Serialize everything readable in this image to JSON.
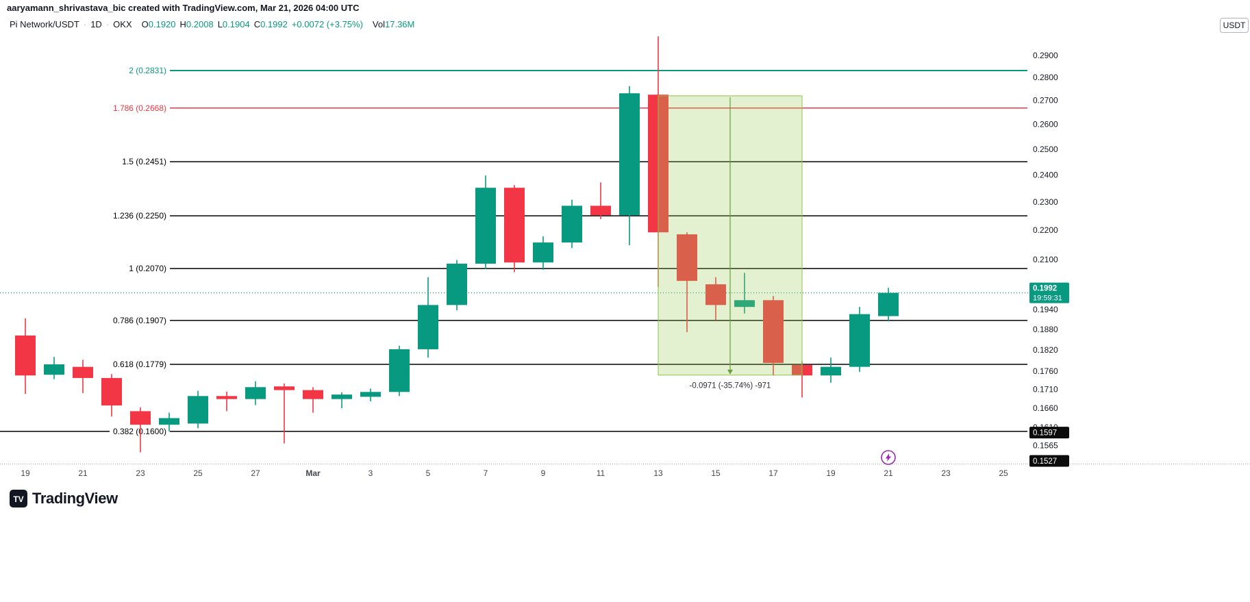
{
  "attribution": "aaryamann_shrivastava_bic created with TradingView.com, Mar 21, 2026 04:00 UTC",
  "legend": {
    "symbol": "Pi Network/USDT",
    "separator": "·",
    "interval": "1D",
    "exchange": "OKX",
    "o_label": "O",
    "o_value": "0.1920",
    "h_label": "H",
    "h_value": "0.2008",
    "l_label": "L",
    "l_value": "0.1904",
    "c_label": "C",
    "c_value": "0.1992",
    "change": "+0.0072 (+3.75%)",
    "vol_label": "Vol",
    "vol_value": "17.36M"
  },
  "axis_currency": "USDT",
  "footer": {
    "brand": "TradingView",
    "logo_mark": "TV"
  },
  "chart_data": {
    "type": "candlestick",
    "symbol": "Pi Network/USDT",
    "interval": "1D",
    "exchange": "OKX",
    "y_scale": "log",
    "ylim": [
      0.15,
      0.3
    ],
    "colors": {
      "up": "#089981",
      "down": "#F23645",
      "fib_black": "#000000",
      "measure_fill": "rgba(155,206,88,0.28)",
      "measure_stroke": "#8BC34A",
      "measure_arrow": "#689F38",
      "badge_bg": "#0C0C0C",
      "axis_text": "#131722",
      "date_text": "#434651",
      "marker_purple": "#9C27B0"
    },
    "candles": [
      {
        "date": "Feb 19",
        "o": 0.1862,
        "h": 0.1913,
        "l": 0.1698,
        "c": 0.1748
      },
      {
        "date": "Feb 20",
        "o": 0.175,
        "h": 0.18,
        "l": 0.1738,
        "c": 0.1779
      },
      {
        "date": "Feb 21",
        "o": 0.1772,
        "h": 0.1792,
        "l": 0.17,
        "c": 0.1741
      },
      {
        "date": "Feb 22",
        "o": 0.1741,
        "h": 0.1752,
        "l": 0.1638,
        "c": 0.1667
      },
      {
        "date": "Feb 23",
        "o": 0.1652,
        "h": 0.1662,
        "l": 0.1548,
        "c": 0.1617
      },
      {
        "date": "Feb 24",
        "o": 0.1617,
        "h": 0.1648,
        "l": 0.16,
        "c": 0.1634
      },
      {
        "date": "Feb 25",
        "o": 0.162,
        "h": 0.1706,
        "l": 0.1608,
        "c": 0.1692
      },
      {
        "date": "Feb 26",
        "o": 0.1692,
        "h": 0.1704,
        "l": 0.1652,
        "c": 0.1684
      },
      {
        "date": "Feb 27",
        "o": 0.1684,
        "h": 0.1732,
        "l": 0.1668,
        "c": 0.1716
      },
      {
        "date": "Feb 28",
        "o": 0.1718,
        "h": 0.1726,
        "l": 0.157,
        "c": 0.1708
      },
      {
        "date": "Mar 1",
        "o": 0.1708,
        "h": 0.1716,
        "l": 0.1648,
        "c": 0.1684
      },
      {
        "date": "Mar 2",
        "o": 0.1684,
        "h": 0.1702,
        "l": 0.166,
        "c": 0.1696
      },
      {
        "date": "Mar 3",
        "o": 0.169,
        "h": 0.1712,
        "l": 0.1678,
        "c": 0.1703
      },
      {
        "date": "Mar 4",
        "o": 0.1703,
        "h": 0.1832,
        "l": 0.1692,
        "c": 0.1822
      },
      {
        "date": "Mar 5",
        "o": 0.1822,
        "h": 0.2042,
        "l": 0.1798,
        "c": 0.1954
      },
      {
        "date": "Mar 6",
        "o": 0.1954,
        "h": 0.2098,
        "l": 0.1938,
        "c": 0.2086
      },
      {
        "date": "Mar 7",
        "o": 0.2086,
        "h": 0.2398,
        "l": 0.2068,
        "c": 0.2352
      },
      {
        "date": "Mar 8",
        "o": 0.2352,
        "h": 0.2362,
        "l": 0.2058,
        "c": 0.209
      },
      {
        "date": "Mar 9",
        "o": 0.209,
        "h": 0.2178,
        "l": 0.2066,
        "c": 0.2157
      },
      {
        "date": "Mar 10",
        "o": 0.2157,
        "h": 0.2308,
        "l": 0.2138,
        "c": 0.2286
      },
      {
        "date": "Mar 11",
        "o": 0.2286,
        "h": 0.2372,
        "l": 0.2238,
        "c": 0.2252
      },
      {
        "date": "Mar 12",
        "o": 0.2252,
        "h": 0.2762,
        "l": 0.2148,
        "c": 0.2731
      },
      {
        "date": "Mar 13",
        "o": 0.2725,
        "h": 0.2988,
        "l": 0.201,
        "c": 0.2192
      },
      {
        "date": "Mar 14",
        "o": 0.2185,
        "h": 0.2192,
        "l": 0.1872,
        "c": 0.203
      },
      {
        "date": "Mar 15",
        "o": 0.2019,
        "h": 0.2042,
        "l": 0.1908,
        "c": 0.1954
      },
      {
        "date": "Mar 16",
        "o": 0.1948,
        "h": 0.2056,
        "l": 0.1928,
        "c": 0.1969
      },
      {
        "date": "Mar 17",
        "o": 0.1969,
        "h": 0.1982,
        "l": 0.1748,
        "c": 0.1783
      },
      {
        "date": "Mar 18",
        "o": 0.1777,
        "h": 0.1788,
        "l": 0.1688,
        "c": 0.1748
      },
      {
        "date": "Mar 19",
        "o": 0.1748,
        "h": 0.1798,
        "l": 0.1728,
        "c": 0.1772
      },
      {
        "date": "Mar 20",
        "o": 0.1772,
        "h": 0.1948,
        "l": 0.1758,
        "c": 0.1926
      },
      {
        "date": "Mar 21",
        "o": 0.192,
        "h": 0.2008,
        "l": 0.1904,
        "c": 0.1992
      }
    ],
    "fib_levels": [
      {
        "label": "2 (0.2831)",
        "price": 0.2831,
        "color": "#089981",
        "width": 2
      },
      {
        "label": "1.786 (0.2668)",
        "price": 0.2668,
        "color": "#F23645",
        "width": 1.5
      },
      {
        "label": "1.5 (0.2451)",
        "price": 0.2451,
        "color": "#000000",
        "width": 1.5
      },
      {
        "label": "1.236 (0.2250)",
        "price": 0.225,
        "color": "#000000",
        "width": 1.5
      },
      {
        "label": "1 (0.2070)",
        "price": 0.207,
        "color": "#000000",
        "width": 1.5
      },
      {
        "label": "0.786 (0.1907)",
        "price": 0.1907,
        "color": "#000000",
        "width": 1.5
      },
      {
        "label": "0.618 (0.1779)",
        "price": 0.1779,
        "color": "#000000",
        "width": 1.5
      },
      {
        "label": "0.382 (0.1600)",
        "price": 0.16,
        "color": "#000000",
        "width": 1.5,
        "extends_left": true
      }
    ],
    "price_ticks": [
      "0.2900",
      "0.2800",
      "0.2700",
      "0.2600",
      "0.2500",
      "0.2400",
      "0.2300",
      "0.2200",
      "0.2100",
      "0.1940",
      "0.1880",
      "0.1820",
      "0.1760",
      "0.1710",
      "0.1660",
      "0.1610",
      "0.1565"
    ],
    "price_badges": [
      {
        "value": "0.1597",
        "price": 0.1597
      },
      {
        "value": "0.1527",
        "price": 0.1527
      }
    ],
    "current_price": {
      "value": "0.1992",
      "countdown": "19:59:31",
      "price": 0.1992
    },
    "measurement": {
      "from_date": "Mar 13",
      "to_date": "Mar 18",
      "start_index": 22,
      "end_index": 27,
      "top_price": 0.272,
      "bottom_price": 0.1749,
      "label": "-0.0971 (-35.74%) -971"
    },
    "x_labels": [
      {
        "label": "19",
        "index": 0
      },
      {
        "label": "21",
        "index": 2
      },
      {
        "label": "23",
        "index": 4
      },
      {
        "label": "25",
        "index": 6
      },
      {
        "label": "27",
        "index": 8
      },
      {
        "label": "Mar",
        "index": 10,
        "bold": true
      },
      {
        "label": "3",
        "index": 12
      },
      {
        "label": "5",
        "index": 14
      },
      {
        "label": "7",
        "index": 16
      },
      {
        "label": "9",
        "index": 18
      },
      {
        "label": "11",
        "index": 20
      },
      {
        "label": "13",
        "index": 22
      },
      {
        "label": "15",
        "index": 24
      },
      {
        "label": "17",
        "index": 26
      },
      {
        "label": "19",
        "index": 28
      },
      {
        "label": "21",
        "index": 30
      },
      {
        "label": "23",
        "index": 32
      },
      {
        "label": "25",
        "index": 34
      }
    ],
    "marker": {
      "index": 30,
      "y": 668,
      "type": "lightning"
    }
  }
}
